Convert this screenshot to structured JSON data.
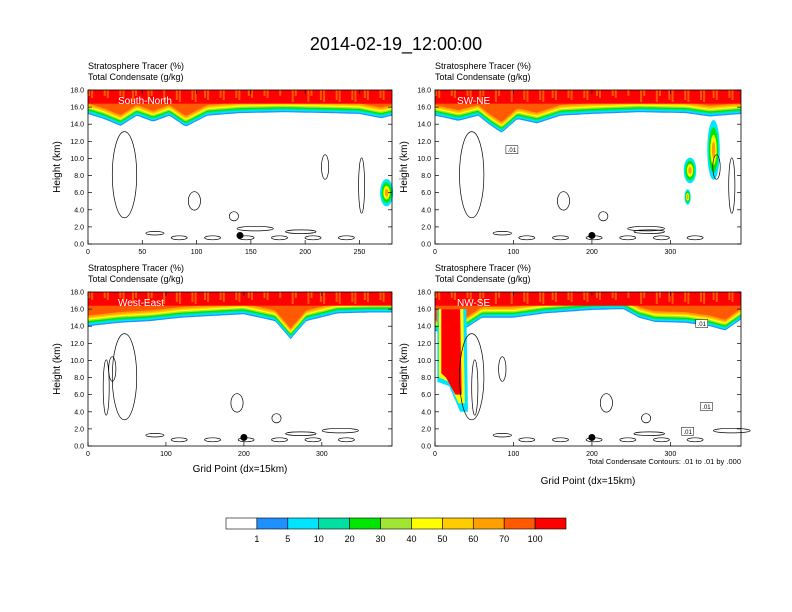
{
  "figure": {
    "title": "2014-02-19_12:00:00",
    "header_line1": "Stratosphere Tracer   (%)",
    "header_line2": "Total Condensate   (g/kg)",
    "xlabel": "Grid Point (dx=15km)",
    "ylabel": "Height (km)",
    "contour_note": "Total Condensate Contours: .01 to .01 by .000"
  },
  "colorbar": {
    "levels": [
      "1",
      "5",
      "10",
      "20",
      "30",
      "40",
      "50",
      "60",
      "70",
      "100"
    ],
    "colors": [
      "#ffffff",
      "#1e90ff",
      "#00e5ff",
      "#00e0a0",
      "#00e600",
      "#a0e632",
      "#ffff00",
      "#ffcc00",
      "#ffa000",
      "#ff5a00",
      "#ff0000"
    ]
  },
  "chart_data": [
    {
      "type": "heatmap",
      "panel_label": "South-North",
      "xlim": [
        0,
        280
      ],
      "xticks": [
        "0",
        "50",
        "100",
        "150",
        "200",
        "250"
      ],
      "ylim": [
        0,
        18
      ],
      "yticks": [
        "0.0",
        "2.0",
        "4.0",
        "6.0",
        "8.0",
        "10.0",
        "12.0",
        "14.0",
        "16.0",
        "18.0"
      ],
      "marker": {
        "x": 140,
        "y": 1.0
      },
      "tracer_top": [
        {
          "x": 0,
          "z": 15.2
        },
        {
          "x": 15,
          "z": 14.6
        },
        {
          "x": 30,
          "z": 13.8
        },
        {
          "x": 45,
          "z": 15.0
        },
        {
          "x": 60,
          "z": 14.3
        },
        {
          "x": 75,
          "z": 15.0
        },
        {
          "x": 90,
          "z": 13.7
        },
        {
          "x": 110,
          "z": 15.0
        },
        {
          "x": 140,
          "z": 15.3
        },
        {
          "x": 180,
          "z": 15.4
        },
        {
          "x": 220,
          "z": 15.3
        },
        {
          "x": 250,
          "z": 15.2
        },
        {
          "x": 270,
          "z": 14.7
        },
        {
          "x": 280,
          "z": 15.0
        }
      ],
      "extra_features": [
        {
          "x": 275,
          "z": 6.0,
          "dx": 6,
          "dz": 1.6
        }
      ],
      "contour_labels": []
    },
    {
      "type": "heatmap",
      "panel_label": "SW-NE",
      "xlim": [
        0,
        390
      ],
      "xticks": [
        "0",
        "100",
        "200",
        "300"
      ],
      "ylim": [
        0,
        18
      ],
      "yticks": [
        "0.0",
        "2.0",
        "4.0",
        "6.0",
        "8.0",
        "10.0",
        "12.0",
        "14.0",
        "16.0",
        "18.0"
      ],
      "marker": {
        "x": 200,
        "y": 1.0
      },
      "tracer_top": [
        {
          "x": 0,
          "z": 15.0
        },
        {
          "x": 30,
          "z": 14.4
        },
        {
          "x": 55,
          "z": 15.0
        },
        {
          "x": 70,
          "z": 13.9
        },
        {
          "x": 85,
          "z": 13.0
        },
        {
          "x": 105,
          "z": 14.6
        },
        {
          "x": 130,
          "z": 14.1
        },
        {
          "x": 160,
          "z": 15.0
        },
        {
          "x": 200,
          "z": 15.2
        },
        {
          "x": 260,
          "z": 15.4
        },
        {
          "x": 320,
          "z": 15.3
        },
        {
          "x": 350,
          "z": 14.9
        },
        {
          "x": 390,
          "z": 15.2
        }
      ],
      "extra_features": [
        {
          "x": 355,
          "z": 11.0,
          "dx": 8,
          "dz": 3.5
        },
        {
          "x": 325,
          "z": 8.6,
          "dx": 8,
          "dz": 1.5
        },
        {
          "x": 322,
          "z": 5.5,
          "dx": 4,
          "dz": 0.9
        }
      ],
      "contour_labels": [
        {
          "text": ".01",
          "x": 98,
          "z": 10.9
        }
      ]
    },
    {
      "type": "heatmap",
      "panel_label": "West-East",
      "xlim": [
        0,
        390
      ],
      "xticks": [
        "0",
        "100",
        "200",
        "300"
      ],
      "ylim": [
        0,
        18
      ],
      "yticks": [
        "0.0",
        "2.0",
        "4.0",
        "6.0",
        "8.0",
        "10.0",
        "12.0",
        "14.0",
        "16.0",
        "18.0"
      ],
      "marker": {
        "x": 200,
        "y": 1.0
      },
      "tracer_top": [
        {
          "x": 0,
          "z": 14.0
        },
        {
          "x": 40,
          "z": 14.4
        },
        {
          "x": 80,
          "z": 14.6
        },
        {
          "x": 120,
          "z": 15.0
        },
        {
          "x": 160,
          "z": 15.2
        },
        {
          "x": 200,
          "z": 15.4
        },
        {
          "x": 240,
          "z": 14.6
        },
        {
          "x": 260,
          "z": 12.5
        },
        {
          "x": 280,
          "z": 14.6
        },
        {
          "x": 320,
          "z": 15.5
        },
        {
          "x": 360,
          "z": 15.6
        },
        {
          "x": 390,
          "z": 15.6
        }
      ],
      "extra_features": [],
      "contour_labels": []
    },
    {
      "type": "heatmap",
      "panel_label": "NW-SE",
      "xlim": [
        0,
        390
      ],
      "xticks": [
        "0",
        "100",
        "200",
        "300"
      ],
      "ylim": [
        0,
        18
      ],
      "yticks": [
        "0.0",
        "2.0",
        "4.0",
        "6.0",
        "8.0",
        "10.0",
        "12.0",
        "14.0",
        "16.0",
        "18.0"
      ],
      "marker": {
        "x": 200,
        "y": 1.0
      },
      "tracer_top": [
        {
          "x": 0,
          "z": 13.5
        },
        {
          "x": 10,
          "z": 13.0
        },
        {
          "x": 35,
          "z": 13.5
        },
        {
          "x": 60,
          "z": 15.0
        },
        {
          "x": 100,
          "z": 15.0
        },
        {
          "x": 140,
          "z": 15.5
        },
        {
          "x": 200,
          "z": 15.9
        },
        {
          "x": 240,
          "z": 16.0
        },
        {
          "x": 260,
          "z": 15.0
        },
        {
          "x": 280,
          "z": 14.5
        },
        {
          "x": 320,
          "z": 14.4
        },
        {
          "x": 350,
          "z": 14.0
        },
        {
          "x": 370,
          "z": 13.5
        },
        {
          "x": 390,
          "z": 14.8
        }
      ],
      "extra_features": [],
      "contour_labels": [
        {
          "text": ".01",
          "x": 340,
          "z": 14.2
        },
        {
          "text": ".01",
          "x": 346,
          "z": 4.5
        },
        {
          "text": ".01",
          "x": 322,
          "z": 1.6
        }
      ]
    }
  ]
}
